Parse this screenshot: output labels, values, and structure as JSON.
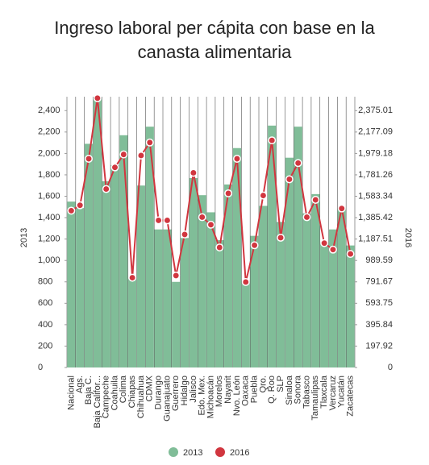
{
  "chart_data": {
    "type": "combo",
    "title": "Ingreso laboral per cápita con base en la canasta alimentaria",
    "ylabel": "2013",
    "y2label": "2016",
    "categories": [
      "Nacional",
      "Ags.",
      "Baja C.",
      "Baja Califor...",
      "Campeche",
      "Coahuila",
      "Colima",
      "Chiapas",
      "Chihuahua",
      "CDMX",
      "Durango",
      "Guanajuato",
      "Guerrero",
      "Hidalgo",
      "Jalisco",
      "Edo. Mex.",
      "Michoacán",
      "Morelos",
      "Nayarit",
      "Nvo. León",
      "Oaxaca",
      "Puebla",
      "Qro.",
      "Q. Roo",
      "SLP",
      "Sinaloa",
      "Sonora",
      "Tabasco",
      "Tamaulipas",
      "Tlaxcala",
      "Vercaruz",
      "Yucatán",
      "Zacatecas"
    ],
    "series": [
      {
        "name": "2013",
        "type": "bar",
        "color": "#80bd98",
        "values": [
          1550,
          1490,
          2090,
          2520,
          1740,
          1890,
          2170,
          830,
          1700,
          2250,
          1290,
          1290,
          800,
          1210,
          1770,
          1610,
          1450,
          1190,
          1710,
          2050,
          810,
          1230,
          1510,
          2260,
          1360,
          1960,
          2250,
          1440,
          1620,
          1170,
          1290,
          1490,
          1140
        ]
      },
      {
        "name": "2016",
        "type": "line",
        "axis": "y2",
        "color": "#d1363f",
        "values": [
          1450,
          1500,
          1930,
          2490,
          1650,
          1850,
          1970,
          830,
          1960,
          2080,
          1360,
          1360,
          850,
          1230,
          1800,
          1390,
          1320,
          1110,
          1610,
          1930,
          790,
          1130,
          1590,
          2100,
          1200,
          1740,
          1890,
          1390,
          1550,
          1150,
          1090,
          1470,
          1050
        ]
      }
    ],
    "ylim": [
      0,
      2530
    ],
    "yticks": [
      0,
      200,
      400,
      600,
      800,
      {
        "value": 1000,
        "label": "1,000"
      },
      {
        "value": 1200,
        "label": "1,200"
      },
      {
        "value": 1400,
        "label": "1,400"
      },
      {
        "value": 1600,
        "label": "1,600"
      },
      {
        "value": 1800,
        "label": "1,800"
      },
      {
        "value": 2000,
        "label": "2,000"
      },
      {
        "value": 2200,
        "label": "2,200"
      },
      {
        "value": 2400,
        "label": "2,400"
      }
    ],
    "y2lim": [
      0,
      2503.7
    ],
    "y2ticks": [
      0,
      197.92,
      395.84,
      593.75,
      791.67,
      989.59,
      {
        "value": 1187.51,
        "label": "1,187.51"
      },
      {
        "value": 1385.42,
        "label": "1,385.42"
      },
      {
        "value": 1583.34,
        "label": "1,583.34"
      },
      {
        "value": 1781.26,
        "label": "1,781.26"
      },
      {
        "value": 1979.18,
        "label": "1,979.18"
      },
      {
        "value": 2177.09,
        "label": "2,177.09"
      },
      {
        "value": 2375.01,
        "label": "2,375.01"
      }
    ],
    "legend": "bottom"
  }
}
